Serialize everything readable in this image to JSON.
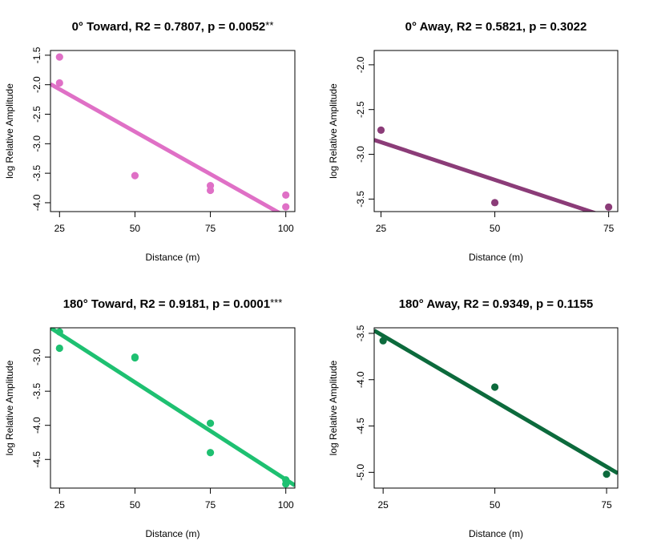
{
  "chart_data": [
    {
      "type": "scatter",
      "title": "0° Toward, R2 = 0.7807, p = 0.0052",
      "title_stars": "**",
      "xlabel": "Distance (m)",
      "ylabel": "log Relative Amplitude",
      "xlim": [
        22,
        103
      ],
      "ylim": [
        -4.15,
        -1.42
      ],
      "xticks": [
        25,
        50,
        75,
        100
      ],
      "xtick_labels": [
        "25",
        "50",
        "75",
        "100"
      ],
      "yticks": [
        -1.5,
        -2.0,
        -2.5,
        -3.0,
        -3.5,
        -4.0
      ],
      "ytick_labels": [
        "-1.5",
        "-2.0",
        "-2.5",
        "-3.0",
        "-3.5",
        "-4.0"
      ],
      "color": "#df70c6",
      "points": [
        [
          25,
          -1.53
        ],
        [
          25,
          -1.97
        ],
        [
          50,
          -3.54
        ],
        [
          75,
          -3.71
        ],
        [
          75,
          -3.79
        ],
        [
          100,
          -3.87
        ],
        [
          100,
          -4.07
        ]
      ],
      "fit_line": [
        [
          22,
          -1.99
        ],
        [
          103,
          -4.32
        ]
      ]
    },
    {
      "type": "scatter",
      "title": "0° Away, R2 = 0.5821, p = 0.3022",
      "title_stars": "",
      "xlabel": "Distance (m)",
      "ylabel": "log Relative Amplitude",
      "xlim": [
        23.5,
        77
      ],
      "ylim": [
        -3.64,
        -1.84
      ],
      "xticks": [
        25,
        50,
        75
      ],
      "xtick_labels": [
        "25",
        "50",
        "75"
      ],
      "yticks": [
        -2.0,
        -2.5,
        -3.0,
        -3.5
      ],
      "ytick_labels": [
        "-2.0",
        "-2.5",
        "-3.0",
        "-3.5"
      ],
      "color": "#8b3c78",
      "points": [
        [
          25,
          -2.73
        ],
        [
          50,
          -3.54
        ],
        [
          75,
          -3.59
        ]
      ],
      "fit_line": [
        [
          23.5,
          -2.84
        ],
        [
          77,
          -3.74
        ]
      ]
    },
    {
      "type": "scatter",
      "title": "180° Toward, R2 = 0.9181, p = 0.0001",
      "title_stars": "***",
      "xlabel": "Distance (m)",
      "ylabel": "log Relative Amplitude",
      "xlim": [
        22,
        103
      ],
      "ylim": [
        -4.92,
        -2.57
      ],
      "xticks": [
        25,
        50,
        75,
        100
      ],
      "xtick_labels": [
        "25",
        "50",
        "75",
        "100"
      ],
      "yticks": [
        -3.0,
        -3.5,
        -4.0,
        -4.5
      ],
      "ytick_labels": [
        "-3.0",
        "-3.5",
        "-4.0",
        "-4.5"
      ],
      "color": "#1ec071",
      "points": [
        [
          25,
          -2.63
        ],
        [
          25,
          -2.87
        ],
        [
          50,
          -3.0
        ],
        [
          50,
          -3.01
        ],
        [
          75,
          -3.97
        ],
        [
          75,
          -4.4
        ],
        [
          100,
          -4.8
        ],
        [
          100,
          -4.86
        ]
      ],
      "fit_line": [
        [
          22,
          -2.57
        ],
        [
          103,
          -4.88
        ]
      ]
    },
    {
      "type": "scatter",
      "title": "180° Away, R2 = 0.9349, p = 0.1155",
      "title_stars": "",
      "xlabel": "Distance (m)",
      "ylabel": "log Relative Amplitude",
      "xlim": [
        23,
        77.5
      ],
      "ylim": [
        -5.17,
        -3.44
      ],
      "xticks": [
        25,
        50,
        75
      ],
      "xtick_labels": [
        "25",
        "50",
        "75"
      ],
      "yticks": [
        -3.5,
        -4.0,
        -4.5,
        -5.0
      ],
      "ytick_labels": [
        "-3.5",
        "-4.0",
        "-4.5",
        "-5.0"
      ],
      "color": "#0c6a3c",
      "points": [
        [
          25,
          -3.58
        ],
        [
          50,
          -4.08
        ],
        [
          75,
          -5.02
        ]
      ],
      "fit_line": [
        [
          23,
          -3.47
        ],
        [
          77.5,
          -5.01
        ]
      ]
    }
  ]
}
